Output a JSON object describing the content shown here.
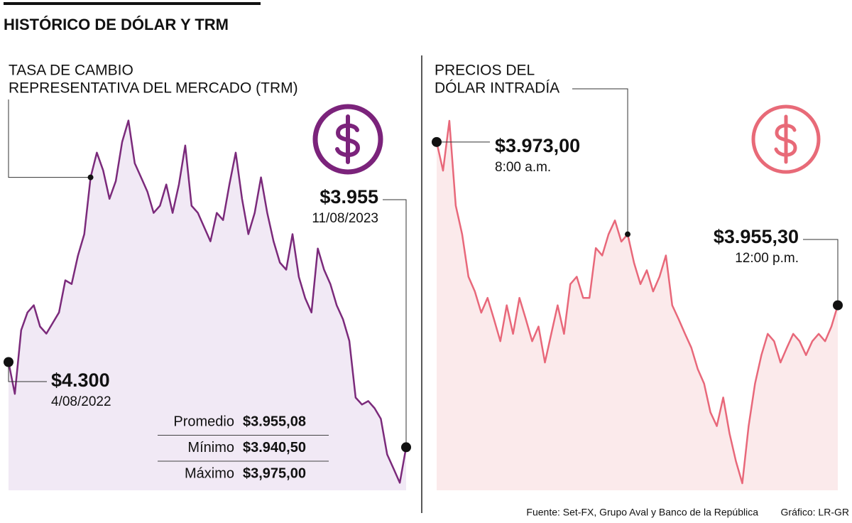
{
  "title": "HISTÓRICO DE DÓLAR Y TRM",
  "source": "Fuente: Set-FX, Grupo Aval y Banco de la República",
  "credit": "Gráfico: LR-GR",
  "stats": [
    {
      "label": "Promedio",
      "value": "$3.955,08"
    },
    {
      "label": "Mínimo",
      "value": "$3.940,50"
    },
    {
      "label": "Máximo",
      "value": "$3,975,00"
    }
  ],
  "chart_data": [
    {
      "type": "line",
      "title": [
        "TASA DE CAMBIO",
        "REPRESENTATIVA DEL MERCADO (TRM)"
      ],
      "color": "#7b2a7b",
      "fill": "#f1e9f5",
      "ylim": [
        3700,
        5300
      ],
      "values": [
        4300,
        4171,
        4429,
        4501,
        4530,
        4444,
        4415,
        4458,
        4501,
        4631,
        4616,
        4731,
        4818,
        5048,
        5148,
        5076,
        4961,
        5033,
        5191,
        5278,
        5105,
        5048,
        4990,
        4904,
        4933,
        5019,
        4904,
        5019,
        5177,
        4933,
        4904,
        4846,
        4789,
        4904,
        4875,
        5019,
        5148,
        4961,
        4818,
        4904,
        5048,
        4904,
        4789,
        4703,
        4674,
        4818,
        4645,
        4559,
        4501,
        4760,
        4674,
        4616,
        4530,
        4473,
        4386,
        4156,
        4128,
        4142,
        4113,
        4070,
        3926,
        3869,
        3811,
        3955
      ],
      "annotations": [
        {
          "label": "$4.300",
          "sublabel": "4/08/2022"
        },
        {
          "label": "$3.955",
          "sublabel": "11/08/2023"
        }
      ]
    },
    {
      "type": "line",
      "title": [
        "PRECIOS DEL",
        "DÓLAR INTRADÍA"
      ],
      "color": "#e8687a",
      "fill": "#fbeaeb",
      "ylim": [
        3930,
        3980
      ],
      "values": [
        3973.0,
        3969.9,
        3975.3,
        3966.1,
        3963.0,
        3958.4,
        3956.8,
        3954.5,
        3956.1,
        3953.8,
        3951.4,
        3955.3,
        3952.2,
        3956.1,
        3953.8,
        3951.4,
        3953.0,
        3949.1,
        3952.2,
        3955.3,
        3952.2,
        3957.6,
        3958.4,
        3956.1,
        3956.1,
        3961.5,
        3960.7,
        3963.0,
        3964.5,
        3962.2,
        3963.0,
        3959.9,
        3957.6,
        3959.1,
        3956.8,
        3958.4,
        3960.7,
        3955.3,
        3953.8,
        3952.2,
        3950.7,
        3948.4,
        3946.8,
        3943.7,
        3942.2,
        3945.3,
        3941.4,
        3938.4,
        3936.0,
        3942.2,
        3946.8,
        3949.9,
        3952.2,
        3951.4,
        3949.1,
        3950.7,
        3952.2,
        3951.4,
        3949.9,
        3951.4,
        3952.2,
        3951.4,
        3953.0,
        3955.3
      ],
      "annotations": [
        {
          "label": "$3.973,00",
          "sublabel": "8:00 a.m."
        },
        {
          "label": "$3.955,30",
          "sublabel": "12:00 p.m."
        }
      ]
    }
  ]
}
